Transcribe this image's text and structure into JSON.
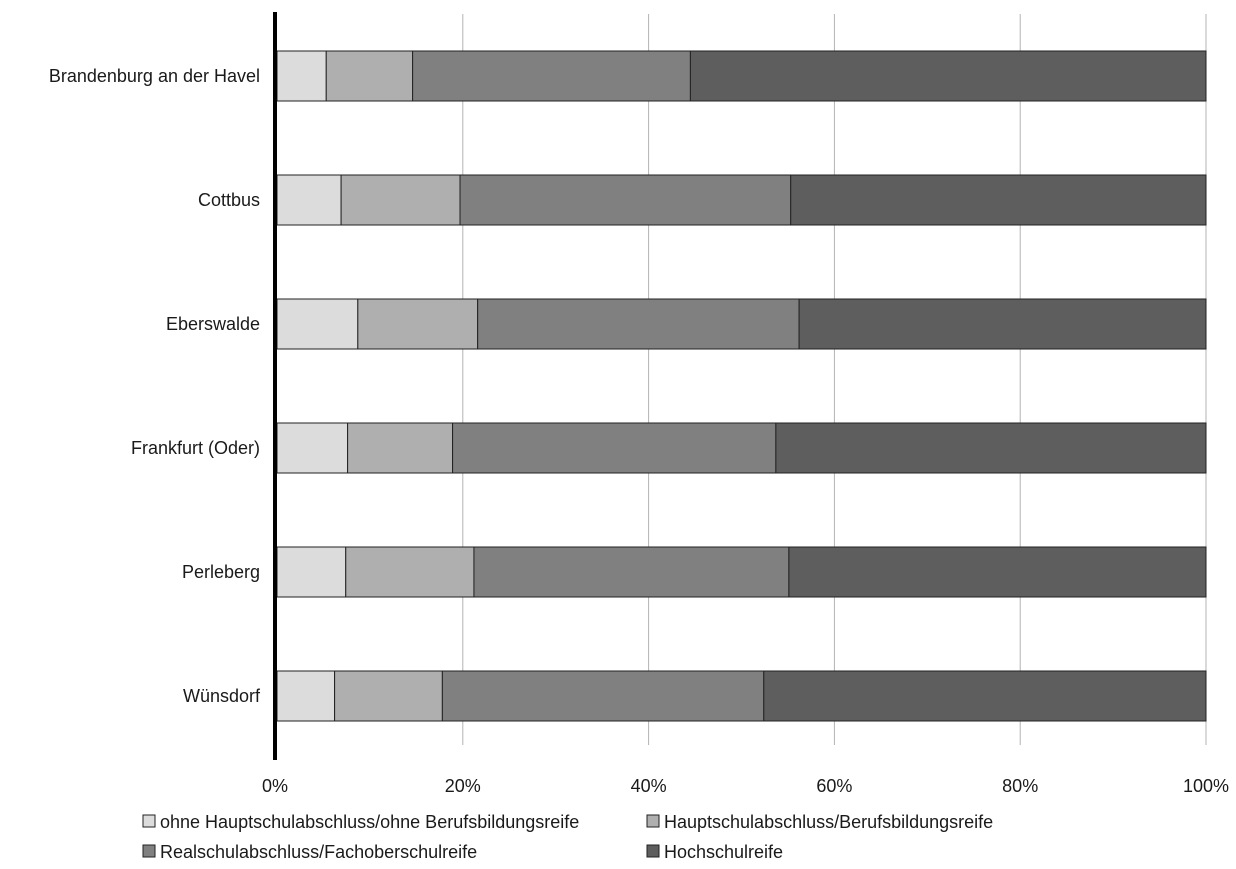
{
  "chart_data": {
    "type": "bar",
    "orientation": "horizontal",
    "stacked": "percent",
    "title": "",
    "xlabel": "",
    "ylabel": "",
    "xlim": [
      0,
      100
    ],
    "x_ticks": [
      "0%",
      "20%",
      "40%",
      "60%",
      "80%",
      "100%"
    ],
    "grid": "vertical",
    "legend_position": "bottom",
    "categories": [
      "Brandenburg an der Havel",
      "Cottbus",
      "Eberswalde",
      "Frankfurt (Oder)",
      "Perleberg",
      "Wünsdorf"
    ],
    "series": [
      {
        "name": "ohne Hauptschulabschluss/ohne Berufsbildungsreife",
        "color": "#dcdcdc",
        "values": [
          5.3,
          6.9,
          8.7,
          7.6,
          7.4,
          6.2
        ]
      },
      {
        "name": "Hauptschulabschluss/Berufsbildungsreife",
        "color": "#afafaf",
        "values": [
          9.3,
          12.8,
          12.9,
          11.3,
          13.8,
          11.6
        ]
      },
      {
        "name": "Realschulabschluss/Fachoberschulreife",
        "color": "#808080",
        "values": [
          29.9,
          35.6,
          34.6,
          34.8,
          33.9,
          34.6
        ]
      },
      {
        "name": "Hochschulreife",
        "color": "#5e5e5e",
        "values": [
          55.5,
          44.7,
          43.8,
          46.3,
          44.9,
          47.6
        ]
      }
    ]
  }
}
